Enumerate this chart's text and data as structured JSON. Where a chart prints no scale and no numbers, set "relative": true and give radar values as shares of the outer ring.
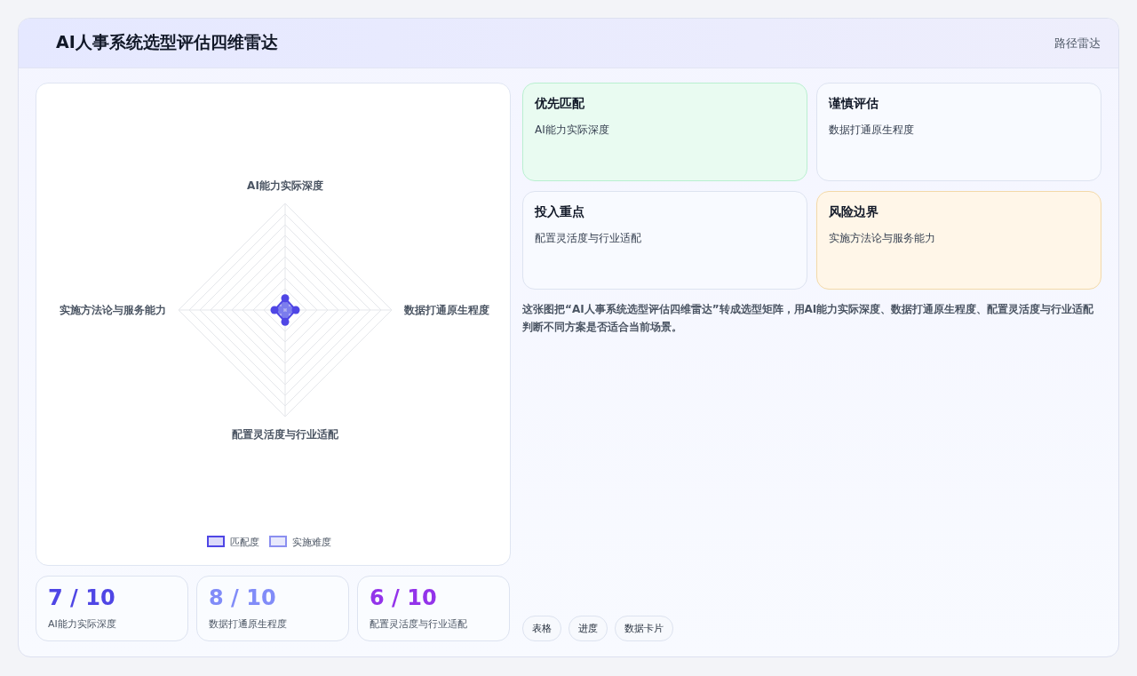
{
  "chart_data": [
    {
      "type": "radar",
      "title": "AI人事系统选型评估四维雷达",
      "annotations": [
        "路径雷达"
      ],
      "categories": [
        "AI能力实际深度",
        "数据打通原生程度",
        "配置灵活度与行业适配",
        "实施方法论与服务能力"
      ],
      "relative": true,
      "grid": true,
      "legend": "bottom",
      "marker": "circle",
      "series": [
        {
          "name": "匹配度",
          "color": "#4f46e5",
          "values": [
            0.11,
            0.1,
            0.11,
            0.1
          ]
        },
        {
          "name": "实施难度",
          "color": "#8b8ff0",
          "values": [
            0.05,
            0.05,
            0.05,
            0.05
          ]
        }
      ]
    },
    {
      "type": "other",
      "annotations": [
        "优先匹配",
        "AI能力实际深度",
        "谨慎评估",
        "数据打通原生程度",
        "投入重点",
        "配置灵活度与行业适配",
        "风险边界",
        "实施方法论与服务能力"
      ]
    },
    {
      "type": "other",
      "annotations": [
        "这张图把“AI人事系统选型评估四维雷达”转成选型矩阵，用AI能力实际深度、数据打通原生程度、配置灵活度与行业适配判断不同方案是否适合当前场景。"
      ]
    },
    {
      "type": "other",
      "annotations": [
        "7 / 10",
        "AI能力实际深度",
        "8 / 10",
        "数据打通原生程度",
        "6 / 10",
        "配置灵活度与行业适配"
      ]
    },
    {
      "type": "other",
      "annotations": [
        "表格",
        "进度",
        "数据卡片"
      ]
    }
  ]
}
